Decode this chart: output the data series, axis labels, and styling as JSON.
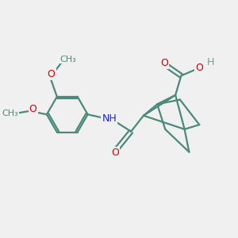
{
  "bg_color": "#f0f0f0",
  "bond_color": "#4a8a7a",
  "O_color": "#cc0000",
  "N_color": "#2222cc",
  "H_color": "#7a9a9a",
  "line_width": 1.6,
  "figsize": [
    3.0,
    3.0
  ],
  "dpi": 100,
  "xlim": [
    0,
    10
  ],
  "ylim": [
    0,
    10
  ]
}
